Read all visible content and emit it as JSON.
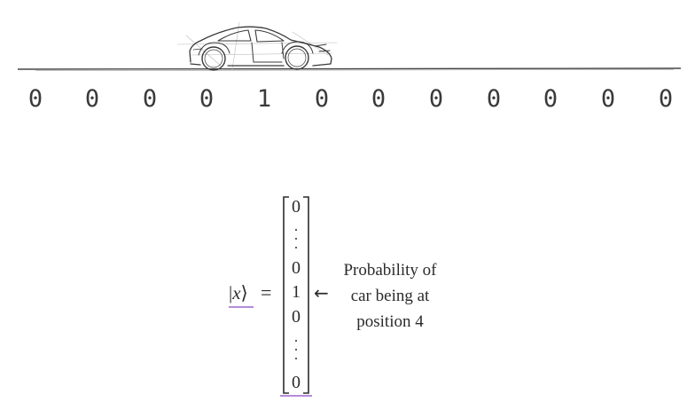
{
  "positions": [
    "0",
    "0",
    "0",
    "0",
    "1",
    "0",
    "0",
    "0",
    "0",
    "0",
    "0",
    "0"
  ],
  "equation": {
    "ket_var": "x",
    "equals": "=",
    "vector": [
      "0",
      "0",
      "1",
      "0",
      "0"
    ],
    "arrow": "←",
    "annotation": [
      "Probability of",
      "car being at",
      "position 4"
    ]
  },
  "icons": [
    "car-sketch-icon"
  ],
  "colors": {
    "ink": "#333333",
    "underline": "#b58bdc"
  }
}
